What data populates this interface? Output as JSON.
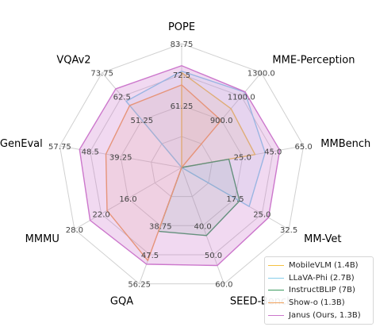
{
  "chart_data": {
    "type": "radar",
    "axes": [
      {
        "name": "POPE",
        "ticks": [
          "61.25",
          "72.5",
          "83.75"
        ],
        "range": [
          50,
          95
        ]
      },
      {
        "name": "MME-Perception",
        "ticks": [
          "900.0",
          "1100.0",
          "1300.0"
        ],
        "range": [
          700,
          1500
        ]
      },
      {
        "name": "MMBench",
        "ticks": [
          "25.0",
          "45.0",
          "65.0"
        ],
        "range": [
          5,
          85
        ]
      },
      {
        "name": "MM-Vet",
        "ticks": [
          "17.5",
          "25.0",
          "32.5"
        ],
        "range": [
          10,
          40
        ]
      },
      {
        "name": "SEED-Bench",
        "ticks": [
          "40.0",
          "50.0",
          "60.0"
        ],
        "range": [
          30,
          70
        ]
      },
      {
        "name": "GQA",
        "ticks": [
          "38.75",
          "47.5",
          "56.25"
        ],
        "range": [
          30,
          65
        ]
      },
      {
        "name": "MMMU",
        "ticks": [
          "16.0",
          "22.0",
          "28.0"
        ],
        "range": [
          10,
          34
        ]
      },
      {
        "name": "GenEval",
        "ticks": [
          "39.25",
          "48.5",
          "57.75"
        ],
        "range": [
          30,
          67
        ]
      },
      {
        "name": "VQAv2",
        "ticks": [
          "51.25",
          "62.5",
          "73.75"
        ],
        "range": [
          40,
          85
        ]
      }
    ],
    "series": [
      {
        "name": "MobileVLM (1.4B)",
        "color": "#f5c242",
        "values": [
          84.5,
          1196.2,
          53.2,
          null,
          null,
          null,
          null,
          null,
          null
        ]
      },
      {
        "name": "LLaVA-Phi (2.7B)",
        "color": "#87ceeb",
        "values": [
          85.0,
          1335.1,
          59.8,
          28.9,
          null,
          null,
          null,
          null,
          71.4
        ]
      },
      {
        "name": "InstructBLIP (7B)",
        "color": "#3c9a5f",
        "values": [
          null,
          null,
          36.0,
          26.2,
          53.4,
          49.2,
          null,
          null,
          null
        ]
      },
      {
        "name": "Show-o (1.3B)",
        "color": "#f0a05a",
        "values": [
          80.0,
          1097.2,
          null,
          null,
          null,
          58.0,
          26.7,
          53.0,
          69.4
        ]
      },
      {
        "name": "Janus (Ours, 1.3B)",
        "color": "#cc77cc",
        "values": [
          87.0,
          1338.0,
          69.4,
          34.3,
          63.7,
          59.1,
          30.5,
          61.0,
          77.3
        ]
      }
    ]
  }
}
